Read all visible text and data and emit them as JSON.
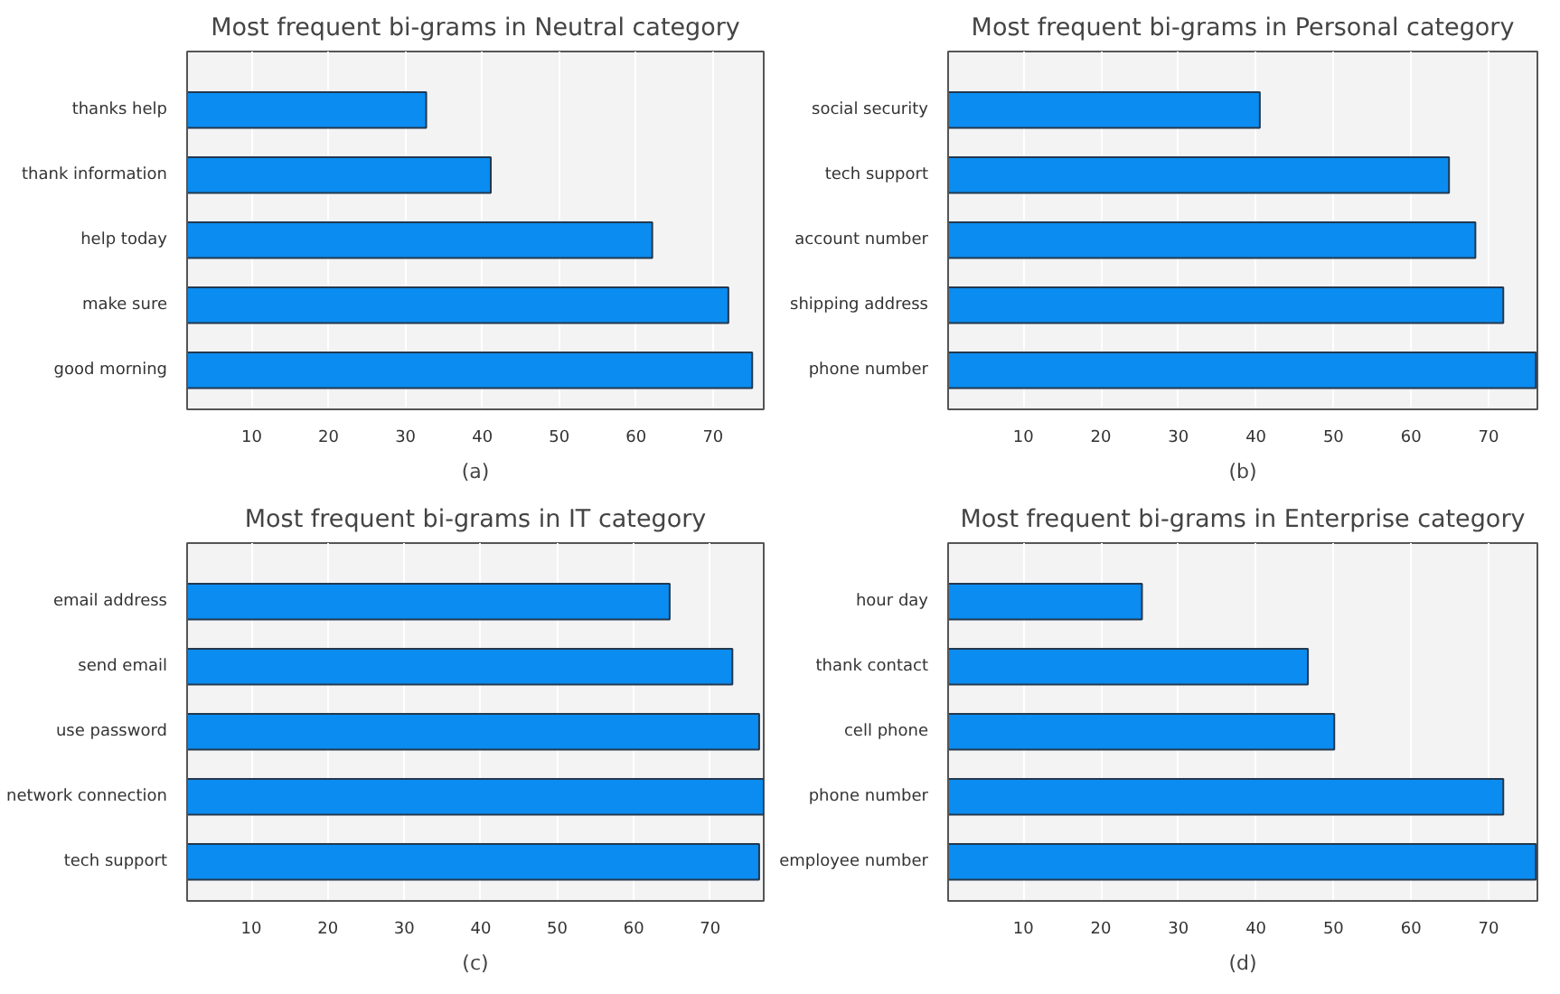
{
  "chart_data": [
    {
      "type": "bar",
      "orientation": "horizontal",
      "title": "Most frequent bi-grams in Neutral category",
      "categories": [
        "thanks help",
        "thank information",
        "help today",
        "make sure",
        "good morning"
      ],
      "values": [
        32.7,
        41.1,
        62.1,
        72,
        75.1
      ],
      "color": "#0a8cf0",
      "xlim": [
        1.6,
        76.6
      ],
      "xticks": [
        10,
        20,
        30,
        40,
        50,
        60,
        70
      ],
      "grid": "x",
      "annotations": [
        "(a)"
      ]
    },
    {
      "type": "bar",
      "orientation": "horizontal",
      "title": "Most frequent bi-grams in Personal category",
      "categories": [
        "social security",
        "tech support",
        "account number",
        "shipping address",
        "phone number"
      ],
      "values": [
        40.5,
        64.9,
        68.3,
        71.9,
        76.1
      ],
      "color": "#0a8cf0",
      "xlim": [
        0.3,
        76.3
      ],
      "xticks": [
        10,
        20,
        30,
        40,
        50,
        60,
        70
      ],
      "grid": "x",
      "annotations": [
        "(b)"
      ]
    },
    {
      "type": "bar",
      "orientation": "horizontal",
      "title": "Most frequent bi-grams in IT category",
      "categories": [
        "email address",
        "send email",
        "use password",
        "network connection",
        "tech support"
      ],
      "values": [
        64.7,
        72.9,
        76.4,
        77,
        76.4
      ],
      "color": "#0a8cf0",
      "xlim": [
        1.6,
        77
      ],
      "xticks": [
        10,
        20,
        30,
        40,
        50,
        60,
        70
      ],
      "grid": "x",
      "annotations": [
        "(c)"
      ]
    },
    {
      "type": "bar",
      "orientation": "horizontal",
      "title": "Most frequent bi-grams in Enterprise category",
      "categories": [
        "hour day",
        "thank contact",
        "cell phone",
        "phone number",
        "employee number"
      ],
      "values": [
        25.3,
        46.7,
        50.1,
        71.9,
        76.1
      ],
      "color": "#0a8cf0",
      "xlim": [
        0.3,
        76.3
      ],
      "xticks": [
        10,
        20,
        30,
        40,
        50,
        60,
        70
      ],
      "grid": "x",
      "annotations": [
        "(d)"
      ]
    }
  ]
}
